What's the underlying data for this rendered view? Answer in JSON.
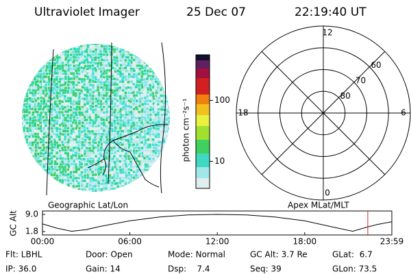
{
  "header": {
    "title": "Ultraviolet Imager",
    "date": "25 Dec 07",
    "time": "22:19:40 UT"
  },
  "colorbar": {
    "label": "photon cm⁻²s⁻¹",
    "log_scale": true,
    "range": [
      3.6,
      560
    ],
    "ticks": [
      10,
      100
    ]
  },
  "polar": {
    "rlim": [
      90,
      50
    ],
    "hour_labels": [
      {
        "value": 12,
        "label": "12"
      },
      {
        "value": 18,
        "label": "18"
      },
      {
        "value": 6,
        "label": "6"
      },
      {
        "value": 0,
        "label": "0"
      }
    ],
    "lat_rings": [
      80,
      70,
      60
    ]
  },
  "projections": {
    "left": "Geographic Lat/Lon",
    "right": "Apex MLat/MLT"
  },
  "altitude_plot": {
    "ylabel": "GC Alt",
    "xlim": [
      0,
      23.98
    ],
    "ylim": [
      1.8,
      9.0
    ],
    "yticks": [
      {
        "value": 9.0,
        "label": "9.0"
      },
      {
        "value": 1.8,
        "label": "1.8"
      }
    ],
    "xticks": [
      {
        "value": 0,
        "label": "00:00"
      },
      {
        "value": 6,
        "label": "06:00"
      },
      {
        "value": 12,
        "label": "12:00"
      },
      {
        "value": 18,
        "label": "18:00"
      },
      {
        "value": 23.98,
        "label": "23:59"
      }
    ],
    "x": [
      0,
      1,
      2,
      3,
      4,
      6,
      8,
      10,
      12,
      14,
      16,
      18,
      20,
      21.3,
      22.3,
      23,
      23.98
    ],
    "values": [
      5.0,
      3.2,
      1.9,
      2.6,
      4.0,
      6.3,
      7.9,
      8.8,
      9.0,
      8.8,
      7.9,
      6.3,
      3.6,
      1.9,
      3.7,
      4.8,
      5.9
    ],
    "current_time": 22.33,
    "marker_color": "#e02020"
  },
  "info": {
    "rows": [
      [
        "Flt: LBHL",
        "Door: Open",
        "Mode: Normal",
        "GC Alt: 3.7 Re",
        "GLat:  6.7"
      ],
      [
        "IP: 36.0",
        "Gain: 14",
        "Dsp:    7.4",
        "Seq: 39",
        "GLon: 73.5"
      ]
    ]
  }
}
